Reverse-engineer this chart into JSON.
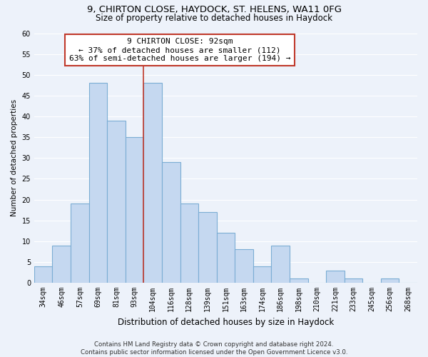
{
  "title1": "9, CHIRTON CLOSE, HAYDOCK, ST. HELENS, WA11 0FG",
  "title2": "Size of property relative to detached houses in Haydock",
  "xlabel": "Distribution of detached houses by size in Haydock",
  "ylabel": "Number of detached properties",
  "bin_labels": [
    "34sqm",
    "46sqm",
    "57sqm",
    "69sqm",
    "81sqm",
    "93sqm",
    "104sqm",
    "116sqm",
    "128sqm",
    "139sqm",
    "151sqm",
    "163sqm",
    "174sqm",
    "186sqm",
    "198sqm",
    "210sqm",
    "221sqm",
    "233sqm",
    "245sqm",
    "256sqm",
    "268sqm"
  ],
  "bin_values": [
    4,
    9,
    19,
    48,
    39,
    35,
    48,
    29,
    19,
    17,
    12,
    8,
    4,
    9,
    1,
    0,
    3,
    1,
    0,
    1,
    0
  ],
  "bar_color": "#c5d8f0",
  "bar_edge_color": "#7badd4",
  "vline_color": "#c0392b",
  "annotation_line1": "9 CHIRTON CLOSE: 92sqm",
  "annotation_line2": "← 37% of detached houses are smaller (112)",
  "annotation_line3": "63% of semi-detached houses are larger (194) →",
  "annotation_box_color": "white",
  "annotation_box_edge": "#c0392b",
  "ylim": [
    0,
    60
  ],
  "yticks": [
    0,
    5,
    10,
    15,
    20,
    25,
    30,
    35,
    40,
    45,
    50,
    55,
    60
  ],
  "footer": "Contains HM Land Registry data © Crown copyright and database right 2024.\nContains public sector information licensed under the Open Government Licence v3.0.",
  "bg_color": "#edf2fa",
  "grid_color": "#ffffff",
  "title1_fontsize": 9.5,
  "title2_fontsize": 8.5,
  "xlabel_fontsize": 8.5,
  "ylabel_fontsize": 7.5,
  "tick_fontsize": 7,
  "annotation_fontsize": 8,
  "footer_fontsize": 6.2
}
